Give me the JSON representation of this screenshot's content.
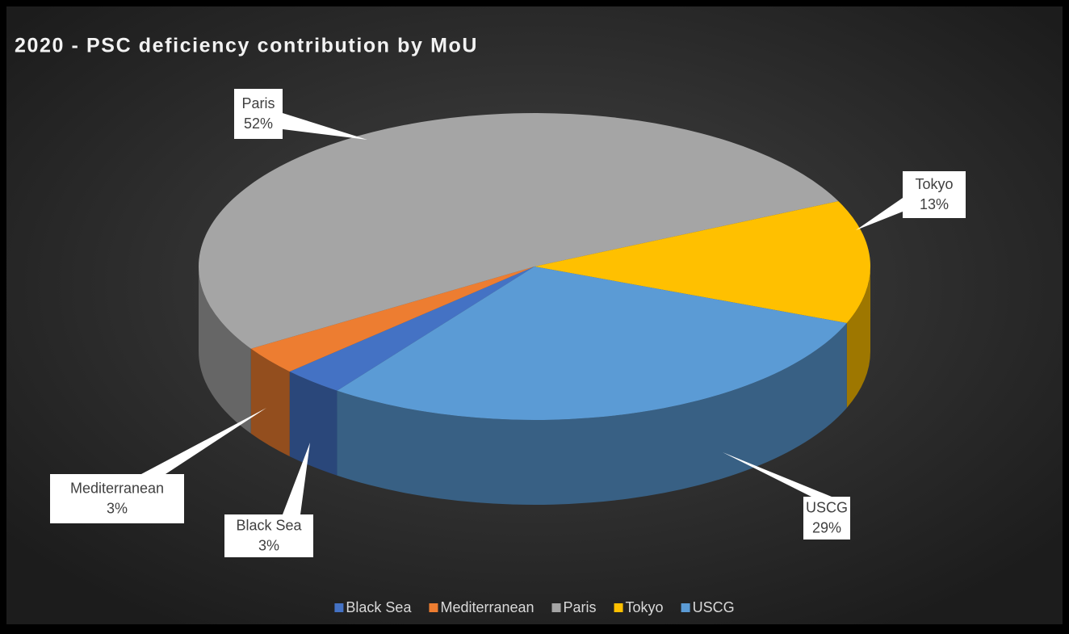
{
  "chart_data": {
    "type": "pie3d",
    "title": "2020 - PSC deficiency contribution by MoU",
    "categories": [
      "Black Sea",
      "Mediterranean",
      "Paris",
      "Tokyo",
      "USCG"
    ],
    "values": [
      3,
      3,
      52,
      13,
      29
    ],
    "value_labels": [
      "3%",
      "3%",
      "52%",
      "13%",
      "29%"
    ],
    "colors": [
      "#4472c4",
      "#ed7d31",
      "#a5a5a5",
      "#ffc000",
      "#5b9bd5"
    ],
    "legend": "bottom"
  }
}
